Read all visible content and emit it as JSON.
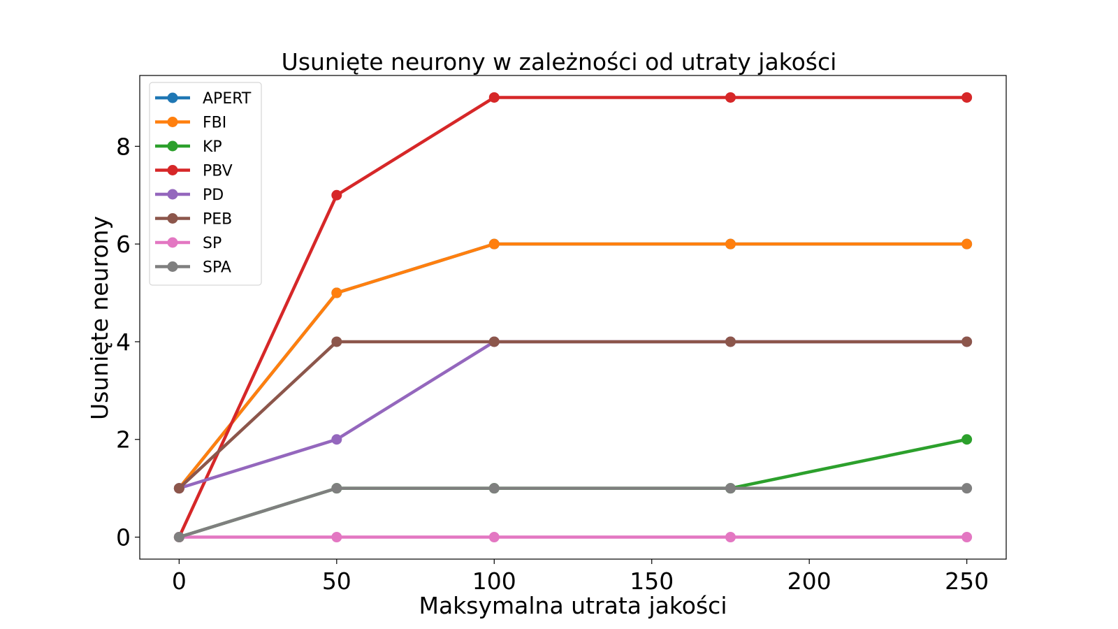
{
  "chart_data": {
    "type": "line",
    "title": "Usunięte neurony w zależności od utraty jakości",
    "xlabel": "Maksymalna utrata jakości",
    "ylabel": "Usunięte neurony",
    "x": [
      0,
      50,
      100,
      175,
      250
    ],
    "xlim": [
      -12.5,
      262.5
    ],
    "ylim": [
      -0.45,
      9.45
    ],
    "xticks": [
      0,
      50,
      100,
      150,
      200,
      250
    ],
    "yticks": [
      0,
      2,
      4,
      6,
      8
    ],
    "grid": false,
    "legend_position": "upper-left",
    "series": [
      {
        "name": "APERT",
        "color": "#1f77b4",
        "values": [
          1,
          5,
          6,
          6,
          6
        ]
      },
      {
        "name": "FBI",
        "color": "#ff7f0e",
        "values": [
          1,
          5,
          6,
          6,
          6
        ]
      },
      {
        "name": "KP",
        "color": "#2ca02c",
        "values": [
          0,
          1,
          1,
          1,
          2
        ]
      },
      {
        "name": "PBV",
        "color": "#d62728",
        "values": [
          0,
          7,
          9,
          9,
          9
        ]
      },
      {
        "name": "PD",
        "color": "#9467bd",
        "values": [
          1,
          2,
          4,
          4,
          4
        ]
      },
      {
        "name": "PEB",
        "color": "#8c564b",
        "values": [
          1,
          4,
          4,
          4,
          4
        ]
      },
      {
        "name": "SP",
        "color": "#e377c2",
        "values": [
          0,
          0,
          0,
          0,
          0
        ]
      },
      {
        "name": "SPA",
        "color": "#7f7f7f",
        "values": [
          0,
          1,
          1,
          1,
          1
        ]
      }
    ]
  }
}
